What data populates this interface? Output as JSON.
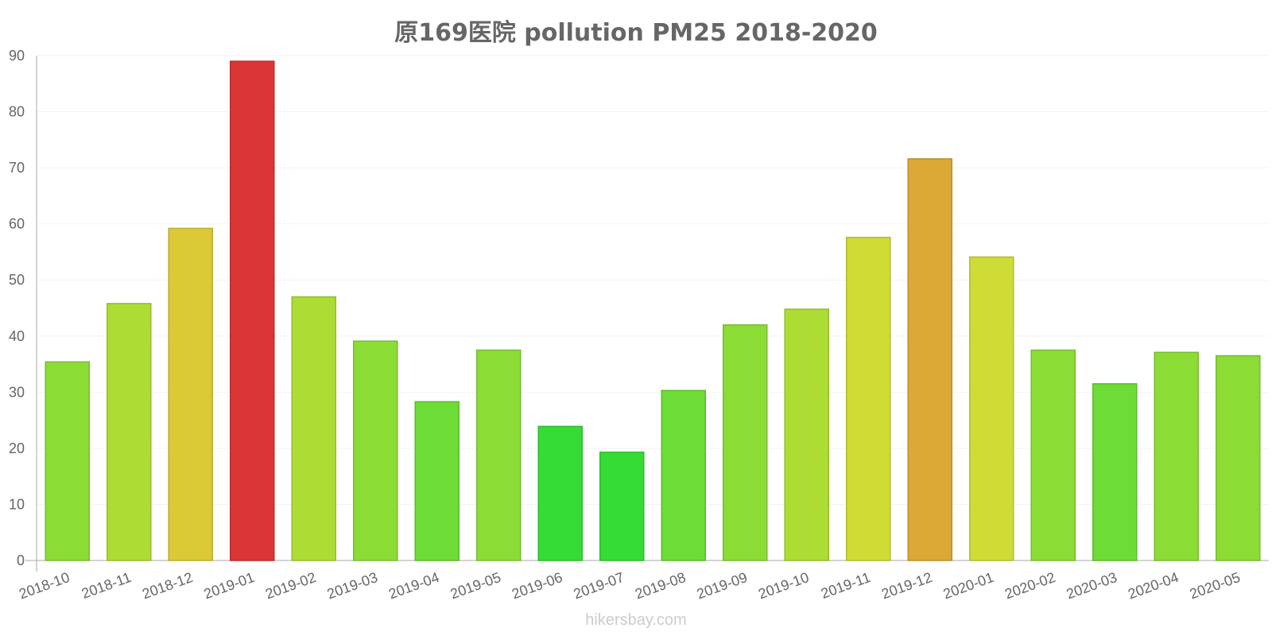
{
  "chart_data": {
    "type": "bar",
    "title": "原169医院 pollution PM25 2018-2020",
    "xlabel": "",
    "ylabel": "",
    "ylim": [
      0,
      90
    ],
    "yticks": [
      0,
      10,
      20,
      30,
      40,
      50,
      60,
      70,
      80,
      90
    ],
    "categories": [
      "2018-10",
      "2018-11",
      "2018-12",
      "2019-01",
      "2019-02",
      "2019-03",
      "2019-04",
      "2019-05",
      "2019-06",
      "2019-07",
      "2019-08",
      "2019-09",
      "2019-10",
      "2019-11",
      "2019-12",
      "2020-01",
      "2020-02",
      "2020-03",
      "2020-04",
      "2020-05"
    ],
    "values": [
      35.4,
      45.8,
      59.2,
      89.0,
      47.0,
      39.1,
      28.3,
      37.5,
      23.9,
      19.3,
      30.3,
      42.0,
      44.8,
      57.6,
      71.6,
      54.1,
      37.5,
      31.5,
      37.1,
      36.5
    ],
    "colors": [
      "#8cdc36",
      "#addd34",
      "#dbca36",
      "#db3636",
      "#addd34",
      "#8cdc36",
      "#6ddc36",
      "#8cdc36",
      "#36dc36",
      "#36dc36",
      "#6ddc36",
      "#8cdc36",
      "#addd34",
      "#d0dc36",
      "#dca836",
      "#d0dc36",
      "#8cdc36",
      "#6ddc36",
      "#8cdc36",
      "#8cdc36"
    ],
    "grid": true,
    "legend": "none"
  },
  "watermark": "hikersbay.com"
}
